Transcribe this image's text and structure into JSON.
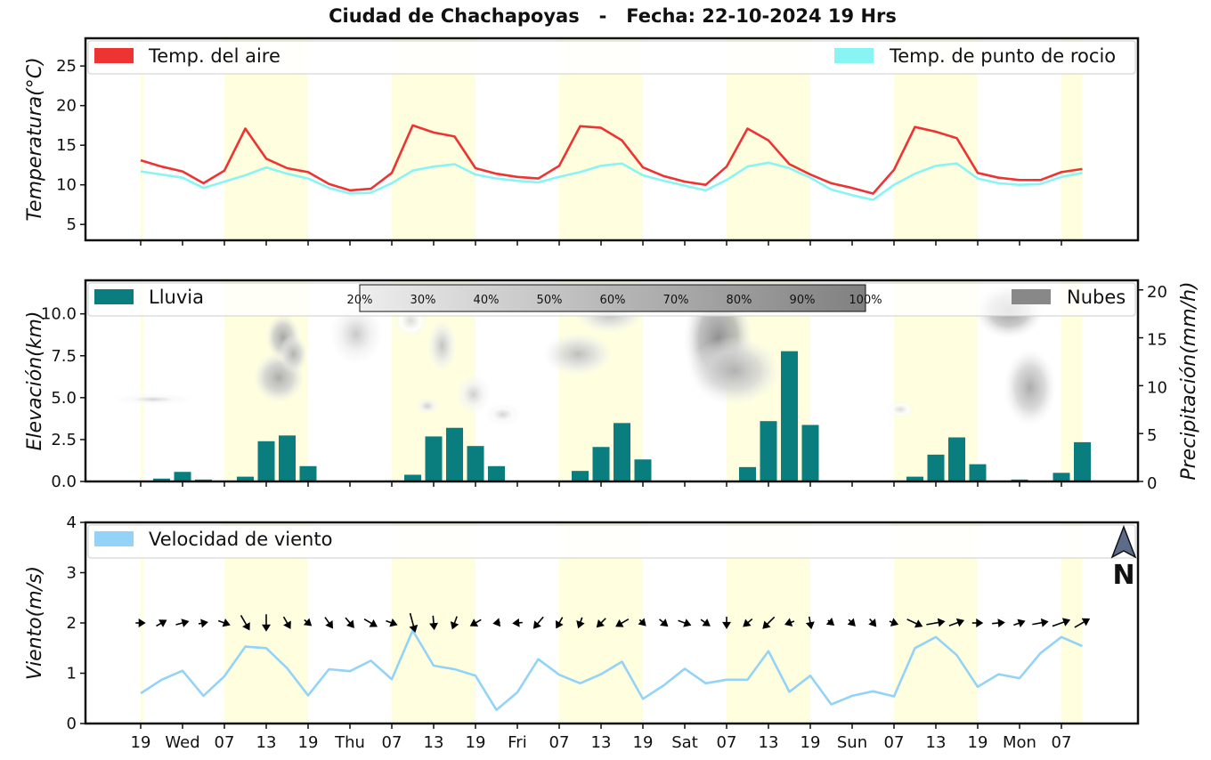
{
  "title": "Ciudad de Chachapoyas   -   Fecha: 22-10-2024 19 Hrs",
  "colors": {
    "air_temp": "#ee3333",
    "dew_point": "#88f4f4",
    "rain": "#0a7e7e",
    "clouds": "#888888",
    "wind": "#93d3f8",
    "daylight": "#ffffe0"
  },
  "x_ticks": [
    "19",
    "Wed",
    "07",
    "13",
    "19",
    "Thu",
    "07",
    "13",
    "19",
    "Fri",
    "07",
    "13",
    "19",
    "Sat",
    "07",
    "13",
    "19",
    "Sun",
    "07",
    "13",
    "19",
    "Mon",
    "07"
  ],
  "daylight_bands": [
    [
      2,
      4
    ],
    [
      6,
      8
    ],
    [
      10,
      12
    ],
    [
      14,
      16
    ],
    [
      18,
      20
    ],
    [
      22,
      22.5
    ]
  ],
  "chart_data": [
    {
      "type": "line",
      "ylabel": "Temperatura(°C)",
      "ylim": [
        3,
        28.5
      ],
      "yticks": [
        5,
        10,
        15,
        20,
        25
      ],
      "legend": "top",
      "x_step_hours": 3,
      "series": [
        {
          "name": "Temp. del aire",
          "values": [
            13.1,
            12.3,
            11.7,
            10.2,
            11.8,
            17.1,
            13.3,
            12.1,
            11.6,
            10.1,
            9.3,
            9.5,
            11.5,
            17.5,
            16.6,
            16.1,
            12.1,
            11.4,
            11.0,
            10.8,
            12.4,
            17.4,
            17.2,
            15.6,
            12.2,
            11.1,
            10.4,
            10.0,
            12.3,
            17.1,
            15.6,
            12.6,
            11.3,
            10.2,
            9.6,
            8.9,
            11.9,
            17.3,
            16.7,
            15.9,
            11.5,
            10.9,
            10.6,
            10.6,
            11.6,
            12.0
          ]
        },
        {
          "name": "Temp. de punto de rocio",
          "values": [
            11.7,
            11.3,
            10.9,
            9.6,
            10.4,
            11.2,
            12.2,
            11.4,
            10.8,
            9.6,
            8.9,
            9.0,
            10.2,
            11.8,
            12.3,
            12.6,
            11.3,
            10.8,
            10.5,
            10.3,
            11.0,
            11.6,
            12.4,
            12.7,
            11.2,
            10.5,
            9.9,
            9.3,
            10.6,
            12.3,
            12.8,
            12.1,
            10.9,
            9.4,
            8.7,
            8.1,
            10.0,
            11.4,
            12.4,
            12.7,
            10.8,
            10.2,
            10.0,
            10.1,
            11.0,
            11.5
          ]
        }
      ]
    },
    {
      "type": "bar",
      "ylabel": "Elevación(km)",
      "ylabel_right": "Precipitación(mm/h)",
      "ylim": [
        0,
        12.0
      ],
      "yticks": [
        "0.0",
        "2.5",
        "5.0",
        "7.5",
        "10.0"
      ],
      "ylim_right": [
        0,
        21.0
      ],
      "yticks_right": [
        0,
        5,
        10,
        15,
        20
      ],
      "legend": "top",
      "x_step_hours": 3,
      "series": [
        {
          "name": "Lluvia",
          "values": [
            0,
            0.3,
            1.0,
            0.2,
            0,
            0.5,
            4.2,
            4.8,
            1.6,
            0,
            0,
            0,
            0.1,
            0.7,
            4.7,
            5.6,
            3.7,
            1.6,
            0,
            0,
            0,
            1.1,
            3.6,
            6.1,
            2.3,
            0,
            0,
            0,
            0,
            1.5,
            6.3,
            13.6,
            5.9,
            0,
            0,
            0,
            0,
            0.5,
            2.8,
            4.6,
            1.8,
            0,
            0.2,
            0,
            0.9,
            4.1
          ]
        }
      ],
      "clouds": {
        "name": "Nubes",
        "colorbar_labels": [
          "20%",
          "30%",
          "40%",
          "50%",
          "60%",
          "70%",
          "80%",
          "90%",
          "100%"
        ],
        "regions": [
          {
            "x": 0.6,
            "y": 4.9,
            "rx": 1.3,
            "ry": 0.25,
            "cover": 0.25
          },
          {
            "x": 6.6,
            "y": 6.2,
            "rx": 0.9,
            "ry": 1.2,
            "cover": 0.6
          },
          {
            "x": 6.8,
            "y": 8.6,
            "rx": 0.6,
            "ry": 1.1,
            "cover": 0.65
          },
          {
            "x": 7.3,
            "y": 7.6,
            "rx": 0.5,
            "ry": 0.9,
            "cover": 0.55
          },
          {
            "x": 10.3,
            "y": 8.8,
            "rx": 0.9,
            "ry": 1.4,
            "cover": 0.35
          },
          {
            "x": 12.9,
            "y": 9.6,
            "rx": 0.6,
            "ry": 0.8,
            "cover": 0.2
          },
          {
            "x": 14.4,
            "y": 8.1,
            "rx": 0.5,
            "ry": 1.2,
            "cover": 0.4
          },
          {
            "x": 13.7,
            "y": 4.5,
            "rx": 0.4,
            "ry": 0.4,
            "cover": 0.3
          },
          {
            "x": 15.9,
            "y": 5.2,
            "rx": 0.6,
            "ry": 0.9,
            "cover": 0.3
          },
          {
            "x": 17.3,
            "y": 4.0,
            "rx": 0.6,
            "ry": 0.5,
            "cover": 0.25
          },
          {
            "x": 20.9,
            "y": 7.6,
            "rx": 1.2,
            "ry": 1.0,
            "cover": 0.45
          },
          {
            "x": 22.4,
            "y": 10.0,
            "rx": 1.2,
            "ry": 0.9,
            "cover": 0.45
          },
          {
            "x": 27.6,
            "y": 8.5,
            "rx": 1.2,
            "ry": 2.6,
            "cover": 0.85
          },
          {
            "x": 28.4,
            "y": 6.6,
            "rx": 1.6,
            "ry": 1.6,
            "cover": 0.55
          },
          {
            "x": 36.3,
            "y": 4.3,
            "rx": 0.5,
            "ry": 0.4,
            "cover": 0.2
          },
          {
            "x": 41.5,
            "y": 10.2,
            "rx": 1.2,
            "ry": 1.3,
            "cover": 0.75
          },
          {
            "x": 42.5,
            "y": 5.6,
            "rx": 0.9,
            "ry": 1.8,
            "cover": 0.6
          }
        ]
      }
    },
    {
      "type": "line",
      "ylabel": "Viento(m/s)",
      "ylim": [
        0,
        4
      ],
      "yticks": [
        0,
        1,
        2,
        3,
        4
      ],
      "legend": "top",
      "x_step_hours": 3,
      "north_label": "N",
      "series": [
        {
          "name": "Velocidad de viento",
          "values": [
            0.6,
            0.87,
            1.05,
            0.55,
            0.94,
            1.53,
            1.5,
            1.1,
            0.56,
            1.08,
            1.04,
            1.25,
            0.88,
            1.85,
            1.15,
            1.08,
            0.95,
            0.27,
            0.62,
            1.28,
            0.97,
            0.8,
            0.98,
            1.23,
            0.49,
            0.76,
            1.09,
            0.8,
            0.87,
            0.87,
            1.44,
            0.63,
            0.95,
            0.38,
            0.55,
            0.64,
            0.54,
            1.5,
            1.72,
            1.36,
            0.73,
            0.98,
            0.9,
            1.4,
            1.72,
            1.54
          ]
        }
      ],
      "wind_direction_deg": [
        90,
        60,
        75,
        80,
        110,
        150,
        180,
        150,
        130,
        145,
        140,
        120,
        110,
        165,
        175,
        200,
        240,
        260,
        265,
        220,
        210,
        200,
        225,
        240,
        135,
        130,
        110,
        125,
        180,
        230,
        225,
        250,
        170,
        130,
        135,
        140,
        110,
        115,
        80,
        70,
        90,
        85,
        70,
        80,
        70,
        60
      ]
    }
  ]
}
